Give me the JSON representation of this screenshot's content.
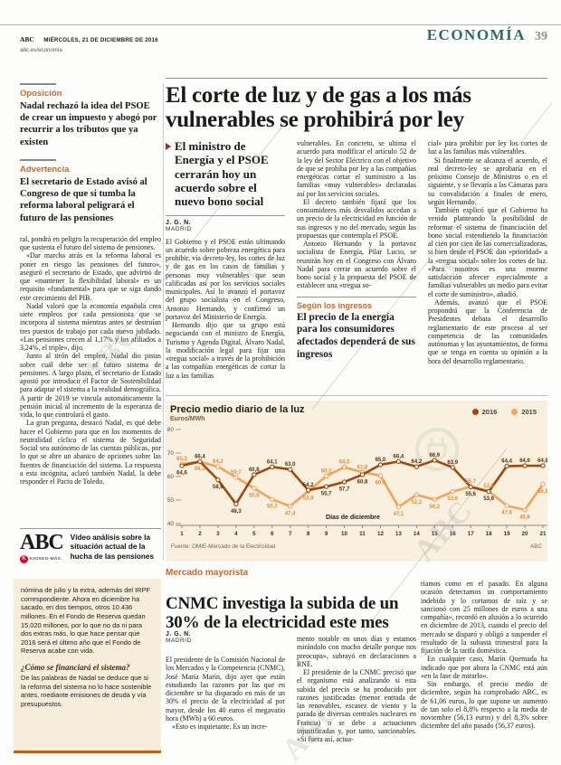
{
  "page": {
    "brand": "ABC",
    "date": "MIÉRCOLES, 21 DE DICIEMBRE DE 2016",
    "site": "abc.es/economia",
    "section": "ECONOMÍA",
    "page_number": "39",
    "watermark": "ABC"
  },
  "sidebar": {
    "items": [
      {
        "kicker": "Oposición",
        "text": "Nadal rechazó la idea del PSOE de crear un impuesto y abogó por recurrir a los tributos que ya existen"
      },
      {
        "kicker": "Advertencia",
        "text": "El secretario de Estado avisó al Congreso de que si tumba la reforma laboral peligrará el futuro de las pensiones"
      }
    ],
    "body": [
      "ral, pondrá en peligro la recuperación del empleo que sustenta el futuro del sistema de pensiones.",
      "«Dar marcha atrás en la reforma laboral es poner en riesgo las pensiones del futuro», aseguró el secretario de Estado, que advirtió de que «mantener la flexibilidad laboral» es un requisito «fundamental» para que se siga dando este crecimiento del PIB.",
      "Nadal valoró que la economía española crea siete empleos por cada pensionista que se incorpora al sistema mientras antes se destruían tres puestos de trabajo por cada nuevo jubilado. «Las pensiones crecen al 1,17% y los afiliados a 3,24%, el triple», dijo.",
      "Junto al tirón del empleo, Nadal dio pistas sobre cuál debe ser el futuro sistema de pensiones. A largo plazo, el secretario de Estado apostó por introducir el Factor de Sostenibilidad para adaptar el sistema a la realidad demográfica. A partir de 2019 se vincula automáticamente la pensión inicial al incremento de la esperanza de vida, lo que controlará el gasto.",
      "La gran pregunta, destacó Nadal, es qué debe hacer el Gobierno para que en los momentos de neutralidad cíclica el sistema de Seguridad Social sea autónomo de las cuentas públicas, por lo que se abre un abanico de opciones sobre las fuentes de financiación del sistema. La respuesta a esta incógnita, aclaró también Nadal, la debe responder el Pacto de Toledo."
    ],
    "kiosko": {
      "logo": "ABC",
      "badge_letter": "K",
      "badge_text": "KIOSKO·MÁS",
      "text": "Vídeo análisis sobre la situación actual de la hucha de las pensiones"
    },
    "box": {
      "lead": "nómina de julio y la extra, además del IRPF correspondiente. Ahora en diciembre ha sacado, en dos tiempos, otros 10.436 millones. En el Fondo de Reserva quedan 15.020 millones, por lo que no da ni para dos extras más, lo que hace pensar que 2016 será el último año que el Fondo de Reserva acabe con vida.",
      "question": "¿Cómo se financiará el sistema?",
      "answer": "De las palabras de Nadal se deduce que si la reforma del sistema no lo hace sostenible antes, mediante emisiones de deuda y vía presupuestos."
    }
  },
  "main_article": {
    "headline": "El corte de luz y de gas a los más vulnerables se prohibirá por ley",
    "deck": "El ministro de Energía y el PSOE cerrarán hoy un acuerdo sobre el nuevo bono social",
    "byline": "J. G. N.",
    "dateline": "MADRID",
    "col1": [
      "El Gobierno y el PSOE están ultimando un acuerdo sobre pobreza energética para prohibir, vía decreto-ley, los cortes de luz y de gas en los casos de familias y personas muy vulnerables que sean calificadas así por los servicios sociales municipales. Así lo avanzó el portavoz del grupo socialista en el Congreso, Antonio Hernando, y confirmó un portavoz del Ministerio de Energía.",
      "Hernando dijo que su grupo está negociando con el ministro de Energía, Turismo y Agenda Digital, Álvaro Nadal, la modificación legal para fijar una «tregua social» a través de la prohibición a las compañías energéticas de cortar la luz a las familias"
    ],
    "col2": [
      "vulnerables. En concreto, se ultima el acuerdo para modificar el artículo 52 de la ley del Sector Eléctrico con el objetivo de que se prohíba por ley a las compañías energéticas cortar el suministro a las familias «muy vulnerables» declaradas así por los servicios sociales.",
      "El decreto también fijará que los consumidores más desvalidos accedan a un precio de la electricidad en función de sus ingresos y no del mercado, según las propuestas que contempla el PSOE.",
      "Antonio Hernando y la portavoz socialista de Energía, Pilar Lucio, se reunirán hoy en el Congreso con Álvaro Nadal para cerrar un acuerdo sobre el bono social y la propuesta del PSOE de establecer una «tregua so-"
    ],
    "col3": [
      "cial» para prohibir por ley los cortes de luz a las familias más vulnerables.",
      "Si finalmente se alcanza el acuerdo, el real decreto-ley se aprobaría en el próximo Consejo de Ministros o en el siguiente, y se llevaría a las Cámaras para su convalidación a finales de enero, según Hernando.",
      "También explicó que el Gobierno ha venido planteando la posibilidad de reformar el sistema de financiación del bono social extendiendo la financiación al cien por cien de las comercializadoras, si bien desde el PSOE dan «prioridad» a la «tregua social» sobre los cortes de luz. «Para nosotros es una enorme satisfacción ofrecer especialmente a familias vulnerables un medio para evitar el corte de suministro», añadió.",
      "Además, avanzó que el PSOE propondrá que la Conferencia de Presidentes debata el desarrollo reglamentario de este proceso al ser competencia de las comunidades autónomas y los ayuntamientos, de forma que se tenga en cuenta su opinión a la hora del desarrollo reglamentario."
    ],
    "callout": {
      "kicker": "Según los ingresos",
      "text": "El precio de la energía para los consumidores afectados dependerá de sus ingresos"
    }
  },
  "chart_data": {
    "type": "line",
    "title": "Precio medio diario de la luz",
    "ylabel": "Euros/MWh",
    "xlabel": "Días de diciembre",
    "x": [
      1,
      2,
      3,
      4,
      5,
      6,
      7,
      8,
      9,
      10,
      11,
      12,
      13,
      14,
      15,
      16,
      17,
      18,
      19,
      20,
      21
    ],
    "series": [
      {
        "name": "2016",
        "color": "#9c4a10",
        "label_color": "#5a300e",
        "values": [
          64.6,
          66.4,
          58.6,
          48.3,
          60.8,
          64.1,
          63.0,
          54.2,
          55.7,
          57.7,
          60.8,
          65.0,
          66.4,
          64.2,
          66.9,
          63.9,
          55.6,
          53.6,
          64.4,
          64.6,
          64.6
        ]
      },
      {
        "name": "2015",
        "color": "#f0a45c",
        "label_color": "#de8f3a",
        "values": [
          65.3,
          66.3,
          64.2,
          59.7,
          55.0,
          50.3,
          47.4,
          53.8,
          60.2,
          64.0,
          61.8,
          60.4,
          47.1,
          52.2,
          50.2,
          53.6,
          55.7,
          53.8,
          47.6,
          45.8,
          56.8
        ]
      }
    ],
    "ylim": [
      40,
      80
    ],
    "yticks": [
      40,
      50,
      60,
      70,
      80
    ],
    "grid": false,
    "legend_position": "top-right",
    "decimal_separator": ",",
    "source": "Fuente: OMIE-Mercado de la Electricidad",
    "credit": "ABC"
  },
  "bottom_article": {
    "kicker": "Mercado mayorista",
    "headline": "CNMC investiga la subida de un 30% de la electricidad este mes",
    "byline": "J. G. N.",
    "dateline": "MADRID",
    "col1": [
      "El presidente de la Comisión Nacional de los Mercados y la Competencia (CNMC), José María Marín, dijo ayer que están estudiando las razones por las que en diciembre se ha disparado en más de un 30% el precio de la electricidad al por mayor, desde los 40 euros el megavatio hora (MWh) a 60 euros.",
      "«Esto es inquietante. Es un incre-"
    ],
    "col2": [
      "mento notable en unos días y estamos mirándolo con mucho detalle porque nos preocupa», subrayó en declaraciones a RNE.",
      "El presidente de la CNMC precisó que el organismo está analizando si esta subida del precio se ha producido por razones justificadas (menor entrada de las renovables, escasez de viento y la parada de diversas centrales nucleares en Francia) o se debe a actuaciones injustificadas y, por tanto, sancionables. «Si fuera así, actua-"
    ],
    "col3": [
      "riamos como en el pasado. En alguna ocasión detectamos un comportamiento indebido y lo cortamos de raíz y se sancionó con 25 millones de euros a una compañía», recordó en alusión a lo ocurrido en diciembre de 2013, cuando el precio del mercado se disparó y obligó a suspender el resultado de la subasta trimestral para la fijación de la tarifa doméstica.",
      "En cualquier caso, Marín Quemada ha indicado que por ahora la CNMC está aún «en la fase de mirarlo».",
      "Sin embargo, el precio medio de diciembre, según ha comprobado ABC, es de 61,06 euros, lo que supone un aumento de tan solo el 8,8% respecto a la media de noviembre (56,13 euros) y del 8,3% sobre diciembre del año pasado (56,37 euros)."
    ]
  },
  "colors": {
    "accent_orange": "#cd6a28",
    "section_teal": "#2a6b6d",
    "line_2016": "#9c4a10",
    "line_2015": "#f0a45c",
    "chart_bg": "#f9f0df",
    "box_bg": "#f6edda",
    "box_border": "#c75b12",
    "kiosko_red": "#e2001a"
  }
}
